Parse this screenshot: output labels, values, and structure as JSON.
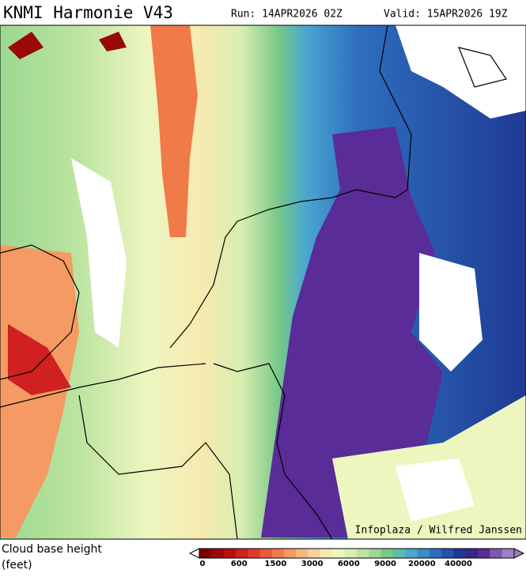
{
  "header": {
    "title": "KNMI Harmonie V43",
    "run": "Run: 14APR2026 02Z",
    "valid": "Valid: 15APR2026 19Z"
  },
  "map": {
    "credit": "Infoplaza / Wilfred Janssen"
  },
  "legend": {
    "title": "Cloud base height",
    "unit": "(feet)",
    "colors": [
      "#7a0000",
      "#9a0808",
      "#b81010",
      "#d02020",
      "#e03a30",
      "#ea5a3a",
      "#f07a48",
      "#f49a62",
      "#f7b880",
      "#f8d29c",
      "#f6eab0",
      "#eef6c0",
      "#d8eeb0",
      "#bce4a0",
      "#9cd890",
      "#78c888",
      "#5cbcb0",
      "#4aa8d0",
      "#3a8cc8",
      "#2e6ebe",
      "#2352ac",
      "#1e3a94",
      "#3a2488",
      "#5a2c98",
      "#7c5ab0",
      "#9c80c4"
    ],
    "ticks": [
      "0",
      "600",
      "1500",
      "3000",
      "6000",
      "9000",
      "20000",
      "40000"
    ]
  }
}
